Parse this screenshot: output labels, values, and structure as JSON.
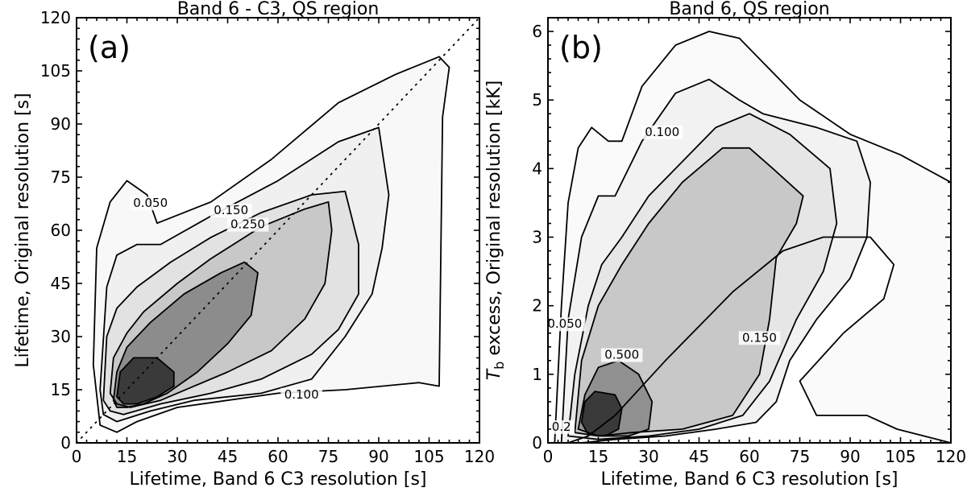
{
  "chart_data": [
    {
      "type": "contour",
      "panel_label": "(a)",
      "title": "Band 6 - C3, QS region",
      "xlabel": "Lifetime, Band 6 C3 resolution [s]",
      "ylabel": "Lifetime, Original resolution [s]",
      "xlim": [
        0,
        120
      ],
      "ylim": [
        0,
        120
      ],
      "xticks": [
        0,
        15,
        30,
        45,
        60,
        75,
        90,
        105,
        120
      ],
      "yticks": [
        0,
        15,
        30,
        45,
        60,
        75,
        90,
        105,
        120
      ],
      "diagonal_reference": true,
      "contour_labels": [
        {
          "text": "0.050",
          "x": 22,
          "y": 67
        },
        {
          "text": "0.150",
          "x": 46,
          "y": 65
        },
        {
          "text": "0.250",
          "x": 51,
          "y": 61
        },
        {
          "text": "0.100",
          "x": 67,
          "y": 13
        }
      ],
      "levels": [
        {
          "fill": "#f8f8f8",
          "points": [
            [
              5,
              22
            ],
            [
              6,
              55
            ],
            [
              10,
              68
            ],
            [
              15,
              74
            ],
            [
              21,
              70
            ],
            [
              24,
              62
            ],
            [
              40,
              68
            ],
            [
              58,
              80
            ],
            [
              78,
              96
            ],
            [
              95,
              104
            ],
            [
              108,
              109
            ],
            [
              111,
              106
            ],
            [
              109,
              92
            ],
            [
              108,
              16
            ],
            [
              102,
              17
            ],
            [
              80,
              15
            ],
            [
              60,
              14
            ],
            [
              30,
              10
            ],
            [
              18,
              6
            ],
            [
              12,
              3
            ],
            [
              7,
              5
            ]
          ]
        },
        {
          "fill": "#f0f0f0",
          "points": [
            [
              7,
              15
            ],
            [
              9,
              44
            ],
            [
              12,
              53
            ],
            [
              18,
              56
            ],
            [
              25,
              56
            ],
            [
              40,
              64
            ],
            [
              60,
              74
            ],
            [
              78,
              85
            ],
            [
              90,
              89
            ],
            [
              93,
              70
            ],
            [
              91,
              55
            ],
            [
              88,
              42
            ],
            [
              80,
              30
            ],
            [
              70,
              18
            ],
            [
              55,
              14
            ],
            [
              35,
              12
            ],
            [
              22,
              9
            ],
            [
              12,
              6
            ],
            [
              8,
              8
            ]
          ]
        },
        {
          "fill": "#e2e2e2",
          "points": [
            [
              8,
              12
            ],
            [
              9,
              30
            ],
            [
              12,
              38
            ],
            [
              18,
              44
            ],
            [
              28,
              51
            ],
            [
              40,
              58
            ],
            [
              55,
              65
            ],
            [
              70,
              70
            ],
            [
              80,
              71
            ],
            [
              84,
              56
            ],
            [
              84,
              42
            ],
            [
              78,
              32
            ],
            [
              70,
              25
            ],
            [
              55,
              18
            ],
            [
              40,
              14
            ],
            [
              25,
              11
            ],
            [
              14,
              8
            ],
            [
              10,
              9
            ]
          ]
        },
        {
          "fill": "#c8c8c8",
          "points": [
            [
              10,
              14
            ],
            [
              11,
              24
            ],
            [
              15,
              31
            ],
            [
              20,
              37
            ],
            [
              30,
              45
            ],
            [
              40,
              52
            ],
            [
              55,
              61
            ],
            [
              68,
              66
            ],
            [
              75,
              68
            ],
            [
              76,
              60
            ],
            [
              74,
              45
            ],
            [
              68,
              35
            ],
            [
              58,
              26
            ],
            [
              45,
              20
            ],
            [
              35,
              16
            ],
            [
              25,
              12
            ],
            [
              16,
              10
            ],
            [
              12,
              11
            ]
          ]
        },
        {
          "fill": "#8c8c8c",
          "points": [
            [
              11,
              12
            ],
            [
              12,
              20
            ],
            [
              15,
              27
            ],
            [
              22,
              34
            ],
            [
              32,
              42
            ],
            [
              43,
              48
            ],
            [
              50,
              51
            ],
            [
              54,
              48
            ],
            [
              52,
              36
            ],
            [
              45,
              28
            ],
            [
              36,
              20
            ],
            [
              27,
              14
            ],
            [
              20,
              11
            ],
            [
              15,
              10
            ],
            [
              12,
              10
            ]
          ]
        },
        {
          "fill": "#3a3a3a",
          "points": [
            [
              12,
              13
            ],
            [
              13,
              20
            ],
            [
              17,
              24
            ],
            [
              24,
              24
            ],
            [
              29,
              20
            ],
            [
              29,
              16
            ],
            [
              24,
              13
            ],
            [
              18,
              11
            ],
            [
              14,
              11
            ]
          ]
        }
      ]
    },
    {
      "type": "contour",
      "panel_label": "(b)",
      "title": "Band 6, QS region",
      "xlabel": "Lifetime, Band 6 C3 resolution [s]",
      "ylabel": "T_b excess, Original resolution [kK]",
      "ylabel_symbol": "T",
      "ylabel_subscript": "b",
      "ylabel_rest": " excess, Original resolution [kK]",
      "xlim": [
        0,
        120
      ],
      "ylim": [
        0,
        6.2
      ],
      "xticks": [
        0,
        15,
        30,
        45,
        60,
        75,
        90,
        105,
        120
      ],
      "yticks": [
        0,
        1,
        2,
        3,
        4,
        5,
        6
      ],
      "diagonal_reference": false,
      "contour_labels": [
        {
          "text": "0.100",
          "x": 34,
          "y": 4.5
        },
        {
          "text": "0.050",
          "x": 5,
          "y": 1.7
        },
        {
          "text": "0.150",
          "x": 63,
          "y": 1.5
        },
        {
          "text": "0.500",
          "x": 22,
          "y": 1.25
        },
        {
          "text": "0.2",
          "x": 4,
          "y": 0.2
        }
      ],
      "levels": [
        {
          "fill": "#fafafa",
          "points": [
            [
              2,
              0
            ],
            [
              4,
              2.0
            ],
            [
              6,
              3.5
            ],
            [
              9,
              4.3
            ],
            [
              13,
              4.6
            ],
            [
              18,
              4.4
            ],
            [
              22,
              4.4
            ],
            [
              28,
              5.2
            ],
            [
              38,
              5.8
            ],
            [
              48,
              6.0
            ],
            [
              57,
              5.9
            ],
            [
              65,
              5.5
            ],
            [
              75,
              5.0
            ],
            [
              90,
              4.5
            ],
            [
              105,
              4.2
            ],
            [
              120,
              3.8
            ],
            [
              120,
              0
            ],
            [
              104,
              0.2
            ],
            [
              95,
              0.4
            ],
            [
              80,
              0.4
            ],
            [
              75,
              0.9
            ],
            [
              88,
              1.6
            ],
            [
              100,
              2.1
            ],
            [
              103,
              2.6
            ],
            [
              96,
              3.0
            ],
            [
              82,
              3.0
            ],
            [
              70,
              2.8
            ],
            [
              55,
              2.2
            ],
            [
              35,
              1.2
            ],
            [
              20,
              0.4
            ],
            [
              12,
              0.1
            ],
            [
              6,
              0
            ]
          ]
        },
        {
          "fill": "#f2f2f2",
          "points": [
            [
              4,
              0
            ],
            [
              6,
              1.8
            ],
            [
              10,
              3.0
            ],
            [
              15,
              3.6
            ],
            [
              20,
              3.6
            ],
            [
              28,
              4.4
            ],
            [
              38,
              5.1
            ],
            [
              48,
              5.3
            ],
            [
              57,
              5.0
            ],
            [
              64,
              4.8
            ],
            [
              80,
              4.6
            ],
            [
              92,
              4.4
            ],
            [
              96,
              3.8
            ],
            [
              95,
              3.0
            ],
            [
              90,
              2.4
            ],
            [
              80,
              1.8
            ],
            [
              72,
              1.2
            ],
            [
              68,
              0.6
            ],
            [
              62,
              0.3
            ],
            [
              50,
              0.2
            ],
            [
              35,
              0.1
            ],
            [
              20,
              0.05
            ],
            [
              10,
              0
            ]
          ]
        },
        {
          "fill": "#e6e6e6",
          "points": [
            [
              6,
              0.1
            ],
            [
              8,
              1.0
            ],
            [
              12,
              2.0
            ],
            [
              16,
              2.6
            ],
            [
              22,
              3.0
            ],
            [
              30,
              3.6
            ],
            [
              40,
              4.1
            ],
            [
              50,
              4.6
            ],
            [
              60,
              4.8
            ],
            [
              72,
              4.5
            ],
            [
              84,
              4.0
            ],
            [
              86,
              3.2
            ],
            [
              82,
              2.5
            ],
            [
              74,
              1.8
            ],
            [
              66,
              0.9
            ],
            [
              58,
              0.4
            ],
            [
              45,
              0.2
            ],
            [
              30,
              0.1
            ],
            [
              15,
              0.05
            ]
          ]
        },
        {
          "fill": "#c8c8c8",
          "points": [
            [
              8,
              0.15
            ],
            [
              10,
              1.2
            ],
            [
              15,
              2.0
            ],
            [
              22,
              2.6
            ],
            [
              30,
              3.2
            ],
            [
              40,
              3.8
            ],
            [
              52,
              4.3
            ],
            [
              60,
              4.3
            ],
            [
              67,
              4.0
            ],
            [
              76,
              3.6
            ],
            [
              74,
              3.2
            ],
            [
              68,
              2.7
            ],
            [
              66,
              1.8
            ],
            [
              63,
              1.0
            ],
            [
              55,
              0.4
            ],
            [
              40,
              0.2
            ],
            [
              25,
              0.15
            ],
            [
              15,
              0.1
            ]
          ]
        },
        {
          "fill": "#909090",
          "points": [
            [
              9,
              0.2
            ],
            [
              11,
              0.7
            ],
            [
              15,
              1.1
            ],
            [
              21,
              1.2
            ],
            [
              27,
              1.0
            ],
            [
              31,
              0.6
            ],
            [
              30,
              0.2
            ],
            [
              24,
              0.1
            ],
            [
              15,
              0.1
            ]
          ]
        },
        {
          "fill": "#3a3a3a",
          "points": [
            [
              10,
              0.3
            ],
            [
              11,
              0.6
            ],
            [
              14,
              0.75
            ],
            [
              20,
              0.7
            ],
            [
              22,
              0.5
            ],
            [
              21,
              0.2
            ],
            [
              17,
              0.1
            ],
            [
              12,
              0.12
            ]
          ]
        }
      ]
    }
  ]
}
